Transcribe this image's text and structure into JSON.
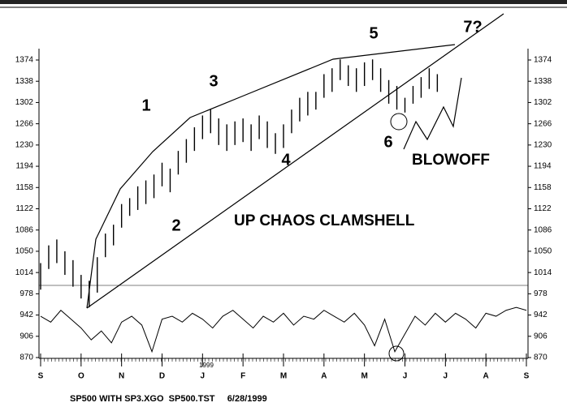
{
  "chart_data": {
    "type": "ohlc",
    "annotations": [
      "1",
      "2",
      "3",
      "4",
      "5",
      "6",
      "7?"
    ],
    "blowoff": "BLOWOFF",
    "title": "UP CHAOS CLAMSHELL",
    "footer": "SP500 WITH SP3.XGO  SP500.TST     6/28/1999",
    "year_label": "1999",
    "xlim": [
      0,
      12
    ],
    "xticks": [
      {
        "value": 0,
        "label": "S"
      },
      {
        "value": 1,
        "label": "O"
      },
      {
        "value": 2,
        "label": "N"
      },
      {
        "value": 3,
        "label": "D"
      },
      {
        "value": 4,
        "label": "J"
      },
      {
        "value": 5,
        "label": "F"
      },
      {
        "value": 6,
        "label": "M"
      },
      {
        "value": 7,
        "label": "A"
      },
      {
        "value": 8,
        "label": "M"
      },
      {
        "value": 9,
        "label": "J"
      },
      {
        "value": 10,
        "label": "J"
      },
      {
        "value": 11,
        "label": "A"
      },
      {
        "value": 12,
        "label": "S"
      }
    ],
    "ylim": [
      870,
      1374
    ],
    "yticks": [
      870,
      906,
      942,
      978,
      1014,
      1050,
      1086,
      1122,
      1158,
      1194,
      1230,
      1266,
      1302,
      1338,
      1374
    ],
    "color": "#000000",
    "price": {
      "x": [
        0,
        0.2,
        0.4,
        0.6,
        0.8,
        1,
        1.2,
        1.4,
        1.6,
        1.8,
        2,
        2.2,
        2.4,
        2.6,
        2.8,
        3,
        3.2,
        3.4,
        3.6,
        3.8,
        4,
        4.2,
        4.4,
        4.6,
        4.8,
        5,
        5.2,
        5.4,
        5.6,
        5.8,
        6,
        6.2,
        6.4,
        6.6,
        6.8,
        7,
        7.2,
        7.4,
        7.6,
        7.8,
        8,
        8.2,
        8.4,
        8.6,
        8.8,
        9,
        9.2,
        9.4,
        9.6,
        9.8
      ],
      "low": [
        985,
        1020,
        1030,
        1010,
        990,
        970,
        955,
        980,
        1040,
        1060,
        1090,
        1110,
        1120,
        1130,
        1140,
        1160,
        1150,
        1180,
        1200,
        1220,
        1240,
        1250,
        1230,
        1220,
        1230,
        1235,
        1220,
        1240,
        1225,
        1215,
        1225,
        1250,
        1270,
        1280,
        1290,
        1310,
        1320,
        1340,
        1330,
        1320,
        1330,
        1340,
        1320,
        1300,
        1290,
        1285,
        1300,
        1310,
        1325,
        1320
      ],
      "high": [
        1030,
        1060,
        1070,
        1050,
        1035,
        1010,
        1000,
        1040,
        1080,
        1095,
        1130,
        1140,
        1160,
        1170,
        1180,
        1200,
        1190,
        1220,
        1240,
        1260,
        1280,
        1290,
        1275,
        1265,
        1270,
        1275,
        1265,
        1280,
        1270,
        1250,
        1265,
        1290,
        1310,
        1320,
        1320,
        1350,
        1360,
        1375,
        1365,
        1360,
        1370,
        1375,
        1360,
        1340,
        1330,
        1310,
        1330,
        1345,
        1360,
        1350
      ]
    },
    "oscillator": {
      "x": [
        0,
        0.25,
        0.5,
        0.75,
        1,
        1.25,
        1.5,
        1.75,
        2,
        2.25,
        2.5,
        2.75,
        3,
        3.25,
        3.5,
        3.75,
        4,
        4.25,
        4.5,
        4.75,
        5,
        5.25,
        5.5,
        5.75,
        6,
        6.25,
        6.5,
        6.75,
        7,
        7.25,
        7.5,
        7.75,
        8,
        8.25,
        8.5,
        8.75,
        9,
        9.25,
        9.5,
        9.75,
        10,
        10.25,
        10.5,
        10.75,
        11,
        11.25,
        11.5,
        11.75,
        12
      ],
      "values": [
        940,
        930,
        950,
        935,
        920,
        900,
        915,
        895,
        930,
        940,
        925,
        880,
        935,
        940,
        930,
        945,
        935,
        920,
        940,
        950,
        935,
        920,
        940,
        930,
        945,
        925,
        940,
        935,
        950,
        940,
        930,
        945,
        925,
        890,
        935,
        880,
        910,
        940,
        925,
        945,
        930,
        945,
        935,
        920,
        945,
        940,
        950,
        955,
        950
      ]
    }
  }
}
